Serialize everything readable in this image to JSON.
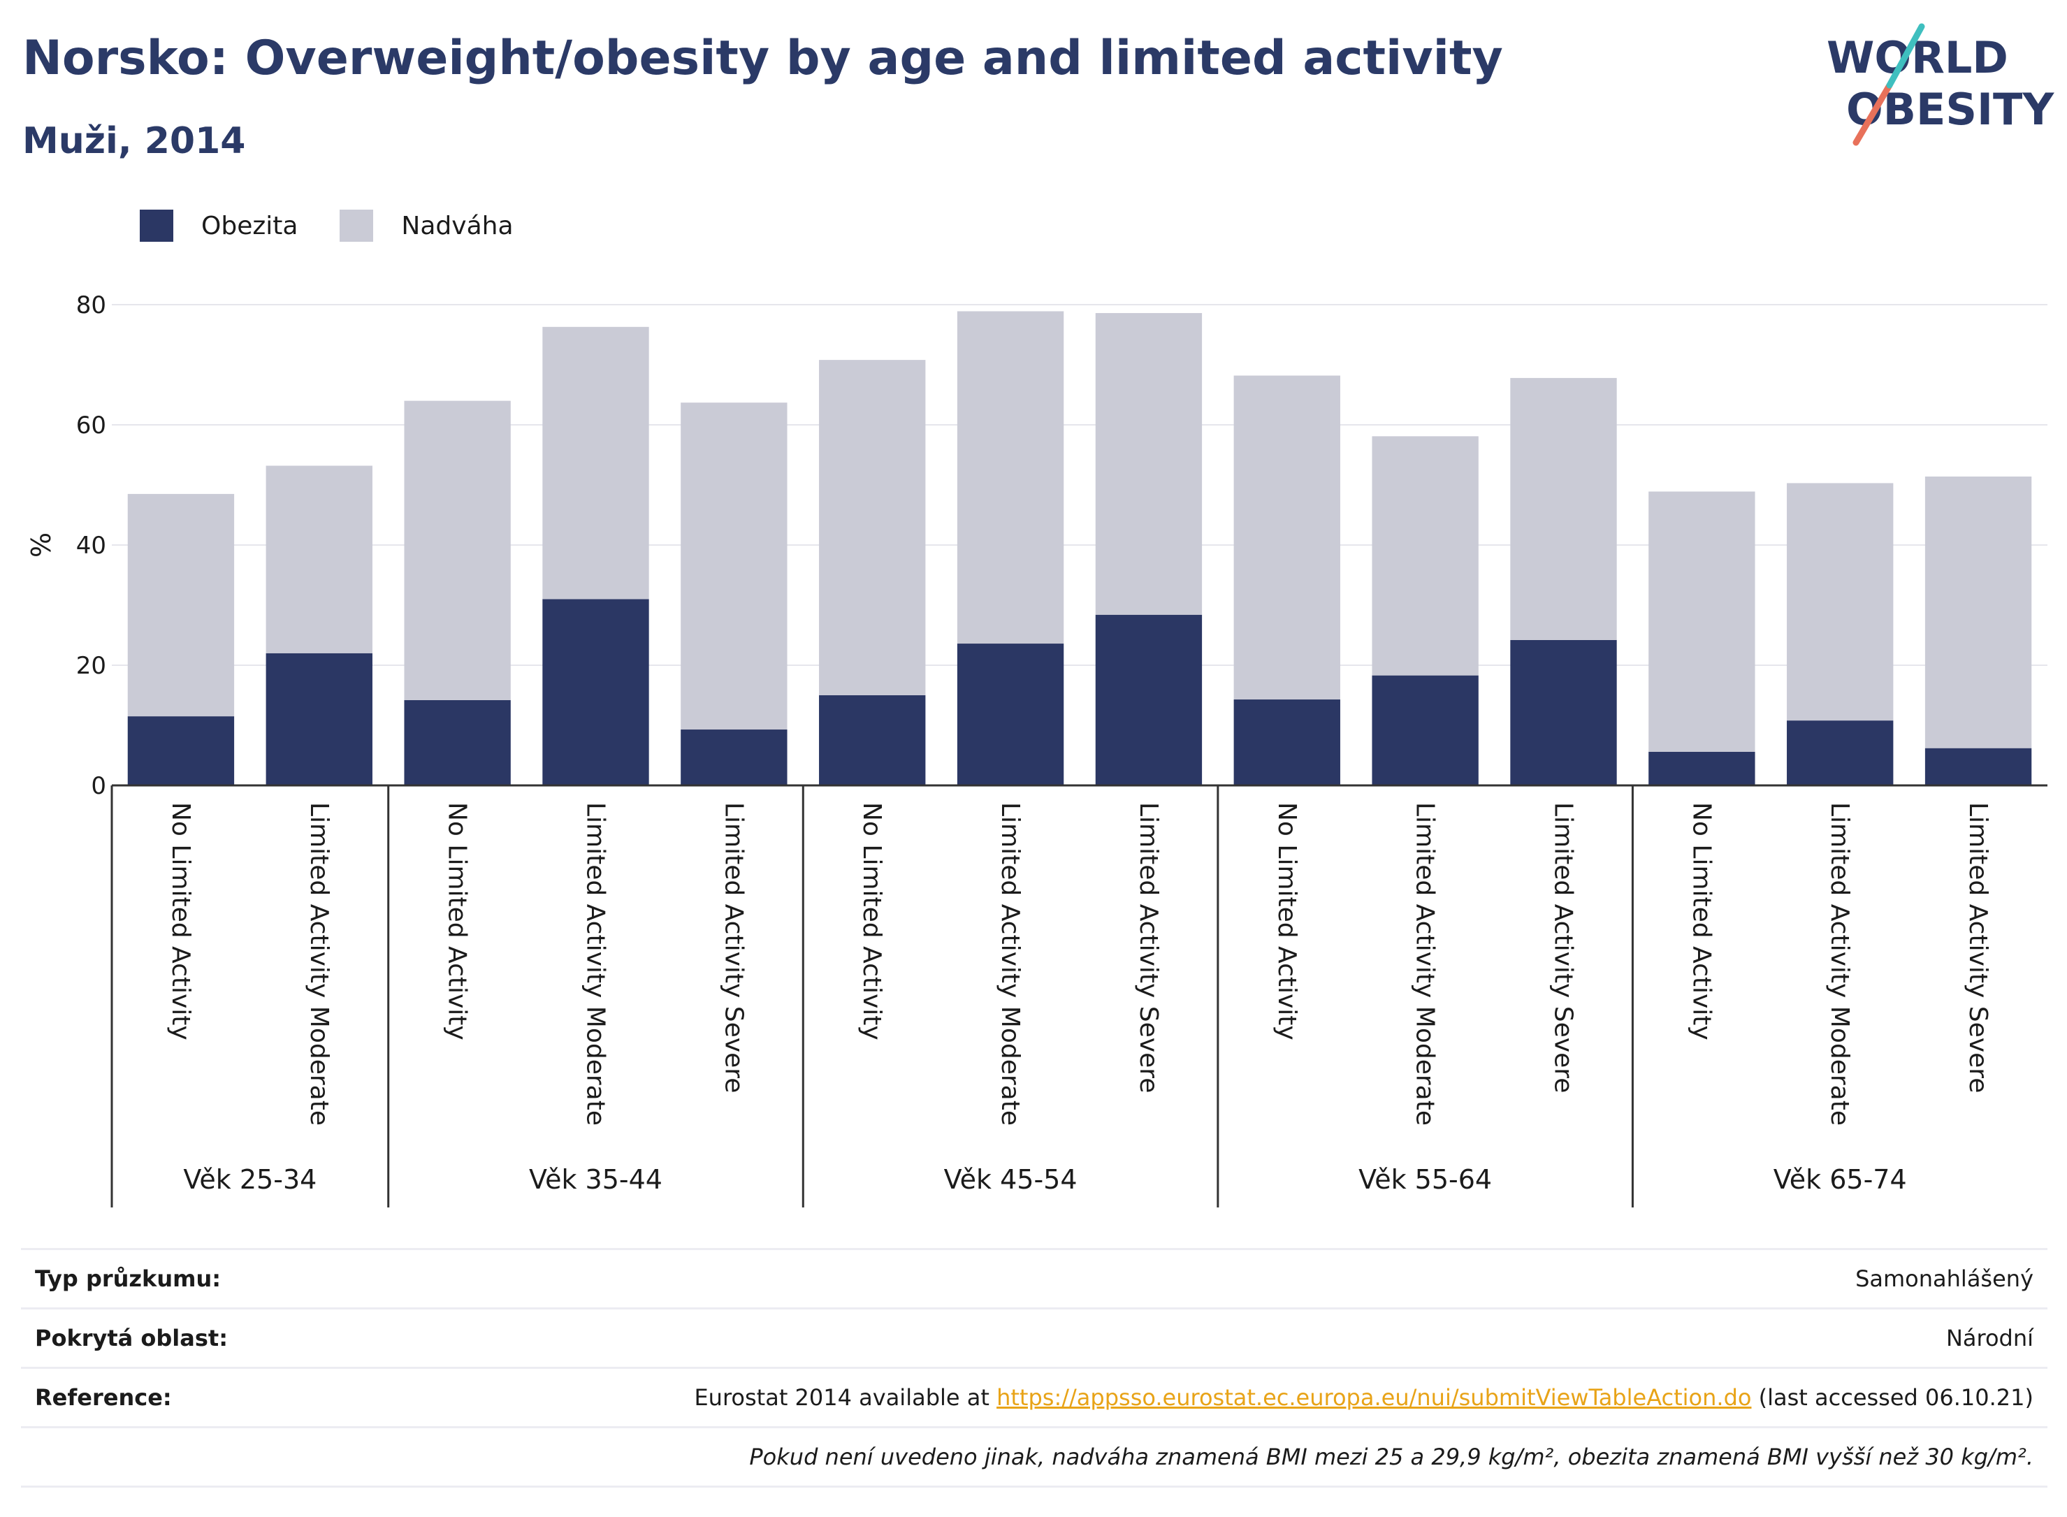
{
  "header": {
    "title": "Norsko: Overweight/obesity by age and limited activity",
    "subtitle": "Muži, 2014"
  },
  "logo": {
    "line1": "WORLD",
    "line2": "OBESITY"
  },
  "colors": {
    "obesity": "#2b3764",
    "overweight": "#cacbd6",
    "title": "#2b3a67",
    "link": "#e8a317"
  },
  "chart_data": {
    "type": "bar",
    "stacked": true,
    "ylabel": "%",
    "ylim": [
      0,
      80
    ],
    "yticks": [
      0,
      20,
      40,
      60,
      80
    ],
    "grid": true,
    "legend_position": "top-left",
    "groups": [
      {
        "label": "Věk 25-34",
        "categories": [
          "No Limited Activity",
          "Limited Activity Moderate"
        ]
      },
      {
        "label": "Věk 35-44",
        "categories": [
          "No Limited Activity",
          "Limited Activity Moderate",
          "Limited Activity Severe"
        ]
      },
      {
        "label": "Věk 45-54",
        "categories": [
          "No Limited Activity",
          "Limited Activity Moderate",
          "Limited Activity Severe"
        ]
      },
      {
        "label": "Věk 55-64",
        "categories": [
          "No Limited Activity",
          "Limited Activity Moderate",
          "Limited Activity Severe"
        ]
      },
      {
        "label": "Věk 65-74",
        "categories": [
          "No Limited Activity",
          "Limited Activity Moderate",
          "Limited Activity Severe"
        ]
      }
    ],
    "series": [
      {
        "name": "Obezita",
        "color": "#2b3764",
        "values": [
          11.5,
          22.0,
          14.2,
          31.0,
          9.3,
          15.0,
          23.6,
          28.4,
          14.3,
          18.3,
          24.2,
          5.6,
          10.8,
          6.2
        ]
      },
      {
        "name": "Nadváha",
        "color": "#cacbd6",
        "values": [
          37.0,
          31.2,
          49.8,
          45.3,
          54.4,
          55.8,
          55.3,
          50.2,
          53.9,
          39.8,
          43.6,
          43.3,
          39.5,
          45.2
        ]
      }
    ]
  },
  "info": {
    "survey_label": "Typ průzkumu:",
    "survey_value": "Samonahlášený",
    "area_label": "Pokrytá oblast:",
    "area_value": "Národní",
    "reference_label": "Reference:",
    "reference_prefix": "Eurostat 2014 available at ",
    "reference_link": "https://appsso.eurostat.ec.europa.eu/nui/submitViewTableAction.do",
    "reference_suffix": " (last accessed 06.10.21)",
    "note": "Pokud není uvedeno jinak, nadváha znamená BMI mezi 25 a 29,9 kg/m², obezita znamená BMI vyšší než 30 kg/m²."
  }
}
